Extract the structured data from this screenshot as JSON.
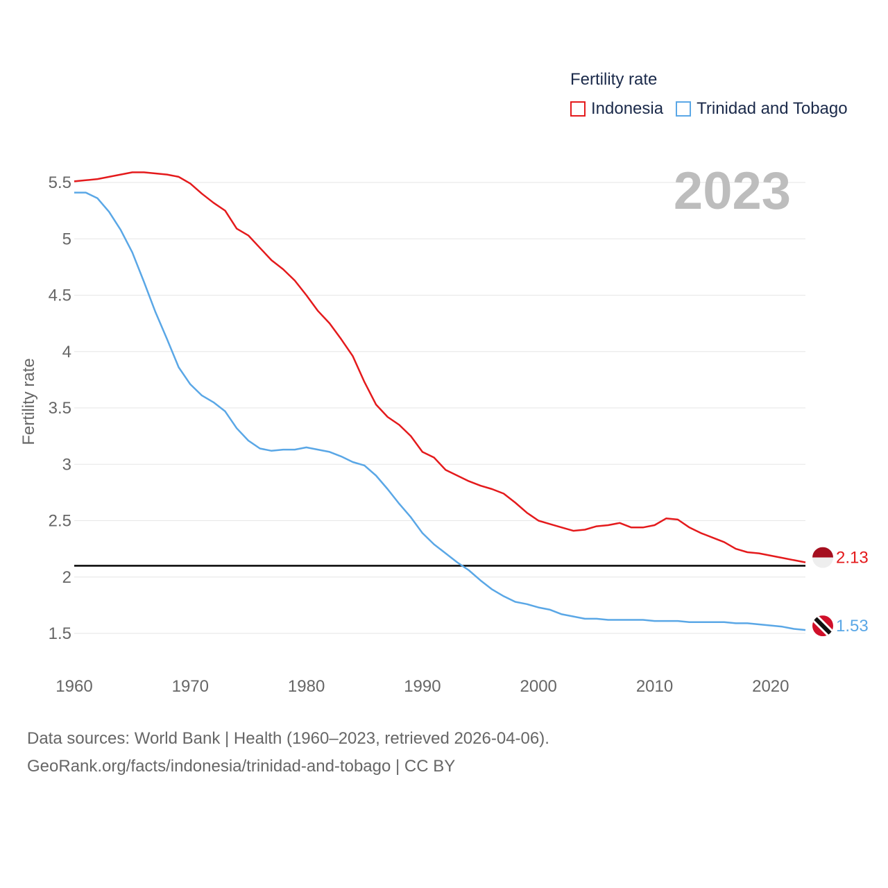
{
  "legend": {
    "title": "Fertility rate",
    "items": [
      {
        "name": "Indonesia",
        "color": "#e41a1c"
      },
      {
        "name": "Trinidad and Tobago",
        "color": "#5aa7e6"
      }
    ]
  },
  "year_label": "2023",
  "sources": {
    "line1": "Data sources: World Bank | Health (1960–2023, retrieved 2026-04-06).",
    "line2": "GeoRank.org/facts/indonesia/trinidad-and-tobago | CC BY"
  },
  "chart_data": {
    "type": "line",
    "title": "Fertility rate",
    "xlabel": "",
    "ylabel": "Fertility rate",
    "xlim": [
      1960,
      2023
    ],
    "ylim": [
      1.3,
      5.6
    ],
    "x_ticks": [
      1960,
      1970,
      1980,
      1990,
      2000,
      2010,
      2020
    ],
    "x_tick_labels": [
      "1960",
      "1970",
      "1980",
      "1990",
      "2000",
      "2010",
      "2020"
    ],
    "y_ticks": [
      1.5,
      2,
      2.5,
      3,
      3.5,
      4,
      4.5,
      5,
      5.5
    ],
    "y_tick_labels": [
      "1.5",
      "2",
      "2.5",
      "3",
      "3.5",
      "4",
      "4.5",
      "5",
      "5.5"
    ],
    "grid": true,
    "reference_line": {
      "y": 2.1,
      "color": "#000000"
    },
    "x": [
      1960,
      1961,
      1962,
      1963,
      1964,
      1965,
      1966,
      1967,
      1968,
      1969,
      1970,
      1971,
      1972,
      1973,
      1974,
      1975,
      1976,
      1977,
      1978,
      1979,
      1980,
      1981,
      1982,
      1983,
      1984,
      1985,
      1986,
      1987,
      1988,
      1989,
      1990,
      1991,
      1992,
      1993,
      1994,
      1995,
      1996,
      1997,
      1998,
      1999,
      2000,
      2001,
      2002,
      2003,
      2004,
      2005,
      2006,
      2007,
      2008,
      2009,
      2010,
      2011,
      2012,
      2013,
      2014,
      2015,
      2016,
      2017,
      2018,
      2019,
      2020,
      2021,
      2022,
      2023
    ],
    "series": [
      {
        "name": "Indonesia",
        "color": "#e41a1c",
        "end_label": "2.13",
        "values": [
          5.51,
          5.52,
          5.53,
          5.55,
          5.57,
          5.59,
          5.59,
          5.58,
          5.57,
          5.55,
          5.49,
          5.4,
          5.32,
          5.25,
          5.09,
          5.03,
          4.92,
          4.81,
          4.73,
          4.63,
          4.5,
          4.36,
          4.25,
          4.11,
          3.96,
          3.73,
          3.53,
          3.42,
          3.35,
          3.25,
          3.11,
          3.06,
          2.95,
          2.9,
          2.85,
          2.81,
          2.78,
          2.74,
          2.66,
          2.57,
          2.5,
          2.47,
          2.44,
          2.41,
          2.42,
          2.45,
          2.46,
          2.48,
          2.44,
          2.44,
          2.46,
          2.52,
          2.51,
          2.44,
          2.39,
          2.35,
          2.31,
          2.25,
          2.22,
          2.21,
          2.19,
          2.17,
          2.15,
          2.13
        ]
      },
      {
        "name": "Trinidad and Tobago",
        "color": "#5aa7e6",
        "end_label": "1.53",
        "values": [
          5.41,
          5.41,
          5.36,
          5.24,
          5.08,
          4.88,
          4.62,
          4.35,
          4.11,
          3.86,
          3.71,
          3.61,
          3.55,
          3.47,
          3.32,
          3.21,
          3.14,
          3.12,
          3.13,
          3.13,
          3.15,
          3.13,
          3.11,
          3.07,
          3.02,
          2.99,
          2.9,
          2.78,
          2.65,
          2.53,
          2.39,
          2.29,
          2.21,
          2.13,
          2.06,
          1.97,
          1.89,
          1.83,
          1.78,
          1.76,
          1.73,
          1.71,
          1.67,
          1.65,
          1.63,
          1.63,
          1.62,
          1.62,
          1.62,
          1.62,
          1.61,
          1.61,
          1.61,
          1.6,
          1.6,
          1.6,
          1.6,
          1.59,
          1.59,
          1.58,
          1.57,
          1.56,
          1.54,
          1.53
        ]
      }
    ]
  }
}
